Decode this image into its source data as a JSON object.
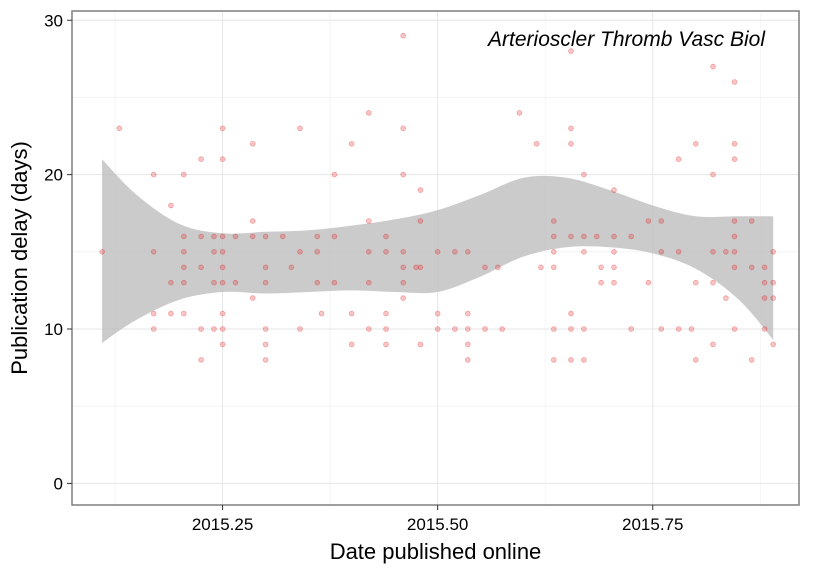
{
  "chart_data": {
    "type": "scatter",
    "xlabel": "Date published online",
    "ylabel": "Publication delay (days)",
    "annotation": "Arterioscler Thromb Vasc Biol",
    "xlim": [
      2015.075,
      2015.92
    ],
    "ylim": [
      -1.4,
      30.6
    ],
    "x_ticks": [
      2015.25,
      2015.5,
      2015.75
    ],
    "x_tick_labels": [
      "2015.25",
      "2015.50",
      "2015.75"
    ],
    "y_ticks": [
      0,
      10,
      20,
      30
    ],
    "y_tick_labels": [
      "0",
      "10",
      "20",
      "30"
    ],
    "grid": true,
    "point_color": "#e41a1c",
    "ribbon_color": "#bebebe",
    "points": [
      [
        2015.11,
        15
      ],
      [
        2015.13,
        23
      ],
      [
        2015.17,
        20
      ],
      [
        2015.17,
        15
      ],
      [
        2015.17,
        11
      ],
      [
        2015.17,
        10
      ],
      [
        2015.19,
        18
      ],
      [
        2015.19,
        13
      ],
      [
        2015.19,
        11
      ],
      [
        2015.205,
        20
      ],
      [
        2015.205,
        16
      ],
      [
        2015.205,
        15
      ],
      [
        2015.205,
        14
      ],
      [
        2015.205,
        13
      ],
      [
        2015.205,
        11
      ],
      [
        2015.225,
        21
      ],
      [
        2015.225,
        16
      ],
      [
        2015.225,
        14
      ],
      [
        2015.225,
        10
      ],
      [
        2015.225,
        8
      ],
      [
        2015.24,
        16
      ],
      [
        2015.24,
        15
      ],
      [
        2015.24,
        13
      ],
      [
        2015.24,
        10
      ],
      [
        2015.25,
        23
      ],
      [
        2015.25,
        21
      ],
      [
        2015.25,
        16
      ],
      [
        2015.25,
        15
      ],
      [
        2015.25,
        14
      ],
      [
        2015.25,
        13
      ],
      [
        2015.25,
        11
      ],
      [
        2015.25,
        10
      ],
      [
        2015.25,
        9
      ],
      [
        2015.265,
        16
      ],
      [
        2015.265,
        13
      ],
      [
        2015.285,
        22
      ],
      [
        2015.285,
        17
      ],
      [
        2015.285,
        16
      ],
      [
        2015.285,
        12
      ],
      [
        2015.3,
        16
      ],
      [
        2015.3,
        14
      ],
      [
        2015.3,
        13
      ],
      [
        2015.3,
        10
      ],
      [
        2015.3,
        9
      ],
      [
        2015.3,
        8
      ],
      [
        2015.32,
        16
      ],
      [
        2015.33,
        14
      ],
      [
        2015.34,
        23
      ],
      [
        2015.34,
        15
      ],
      [
        2015.34,
        10
      ],
      [
        2015.36,
        16
      ],
      [
        2015.36,
        15
      ],
      [
        2015.36,
        13
      ],
      [
        2015.365,
        11
      ],
      [
        2015.38,
        20
      ],
      [
        2015.38,
        16
      ],
      [
        2015.38,
        13
      ],
      [
        2015.4,
        22
      ],
      [
        2015.4,
        11
      ],
      [
        2015.4,
        9
      ],
      [
        2015.42,
        24
      ],
      [
        2015.42,
        17
      ],
      [
        2015.42,
        15
      ],
      [
        2015.42,
        13
      ],
      [
        2015.42,
        10
      ],
      [
        2015.44,
        16
      ],
      [
        2015.44,
        15
      ],
      [
        2015.44,
        11
      ],
      [
        2015.44,
        10
      ],
      [
        2015.44,
        9
      ],
      [
        2015.46,
        29
      ],
      [
        2015.46,
        23
      ],
      [
        2015.46,
        20
      ],
      [
        2015.46,
        15
      ],
      [
        2015.46,
        14
      ],
      [
        2015.46,
        13
      ],
      [
        2015.46,
        12
      ],
      [
        2015.475,
        14
      ],
      [
        2015.48,
        19
      ],
      [
        2015.48,
        17
      ],
      [
        2015.48,
        14
      ],
      [
        2015.48,
        9
      ],
      [
        2015.5,
        15
      ],
      [
        2015.5,
        11
      ],
      [
        2015.5,
        10
      ],
      [
        2015.52,
        15
      ],
      [
        2015.52,
        10
      ],
      [
        2015.535,
        15
      ],
      [
        2015.535,
        11
      ],
      [
        2015.535,
        10
      ],
      [
        2015.535,
        9
      ],
      [
        2015.535,
        8
      ],
      [
        2015.555,
        14
      ],
      [
        2015.555,
        10
      ],
      [
        2015.57,
        14
      ],
      [
        2015.575,
        10
      ],
      [
        2015.595,
        24
      ],
      [
        2015.615,
        22
      ],
      [
        2015.62,
        14
      ],
      [
        2015.635,
        17
      ],
      [
        2015.635,
        16
      ],
      [
        2015.635,
        15
      ],
      [
        2015.635,
        14
      ],
      [
        2015.635,
        10
      ],
      [
        2015.635,
        8
      ],
      [
        2015.655,
        28
      ],
      [
        2015.655,
        23
      ],
      [
        2015.655,
        22
      ],
      [
        2015.655,
        16
      ],
      [
        2015.655,
        11
      ],
      [
        2015.655,
        10
      ],
      [
        2015.655,
        8
      ],
      [
        2015.67,
        20
      ],
      [
        2015.67,
        16
      ],
      [
        2015.67,
        15
      ],
      [
        2015.67,
        10
      ],
      [
        2015.67,
        8
      ],
      [
        2015.685,
        16
      ],
      [
        2015.69,
        14
      ],
      [
        2015.69,
        13
      ],
      [
        2015.705,
        19
      ],
      [
        2015.705,
        16
      ],
      [
        2015.705,
        15
      ],
      [
        2015.705,
        14
      ],
      [
        2015.705,
        13
      ],
      [
        2015.725,
        16
      ],
      [
        2015.725,
        10
      ],
      [
        2015.745,
        17
      ],
      [
        2015.745,
        13
      ],
      [
        2015.76,
        17
      ],
      [
        2015.76,
        15
      ],
      [
        2015.76,
        10
      ],
      [
        2015.78,
        21
      ],
      [
        2015.78,
        15
      ],
      [
        2015.78,
        10
      ],
      [
        2015.795,
        10
      ],
      [
        2015.8,
        22
      ],
      [
        2015.8,
        13
      ],
      [
        2015.8,
        8
      ],
      [
        2015.82,
        27
      ],
      [
        2015.82,
        20
      ],
      [
        2015.82,
        15
      ],
      [
        2015.82,
        13
      ],
      [
        2015.82,
        9
      ],
      [
        2015.835,
        15
      ],
      [
        2015.835,
        12
      ],
      [
        2015.845,
        26
      ],
      [
        2015.845,
        22
      ],
      [
        2015.845,
        21
      ],
      [
        2015.845,
        17
      ],
      [
        2015.845,
        16
      ],
      [
        2015.845,
        15
      ],
      [
        2015.845,
        14
      ],
      [
        2015.845,
        10
      ],
      [
        2015.865,
        17
      ],
      [
        2015.865,
        14
      ],
      [
        2015.865,
        8
      ],
      [
        2015.88,
        14
      ],
      [
        2015.88,
        13
      ],
      [
        2015.88,
        12
      ],
      [
        2015.88,
        10
      ],
      [
        2015.89,
        15
      ],
      [
        2015.89,
        13
      ],
      [
        2015.89,
        12
      ],
      [
        2015.89,
        9
      ]
    ],
    "smooth_ribbon": {
      "x": [
        2015.11,
        2015.15,
        2015.2,
        2015.25,
        2015.3,
        2015.35,
        2015.4,
        2015.45,
        2015.5,
        2015.55,
        2015.6,
        2015.65,
        2015.7,
        2015.75,
        2015.8,
        2015.85,
        2015.89
      ],
      "lower": [
        9.1,
        10.6,
        11.9,
        12.4,
        12.3,
        12.4,
        12.5,
        12.4,
        12.4,
        13.4,
        14.7,
        15.3,
        15.3,
        14.9,
        13.9,
        11.9,
        9.3
      ],
      "upper": [
        21.0,
        18.7,
        16.8,
        16.2,
        16.3,
        16.4,
        16.7,
        17.1,
        17.7,
        18.7,
        19.8,
        19.8,
        19.0,
        18.0,
        17.3,
        17.3,
        17.3
      ]
    }
  }
}
